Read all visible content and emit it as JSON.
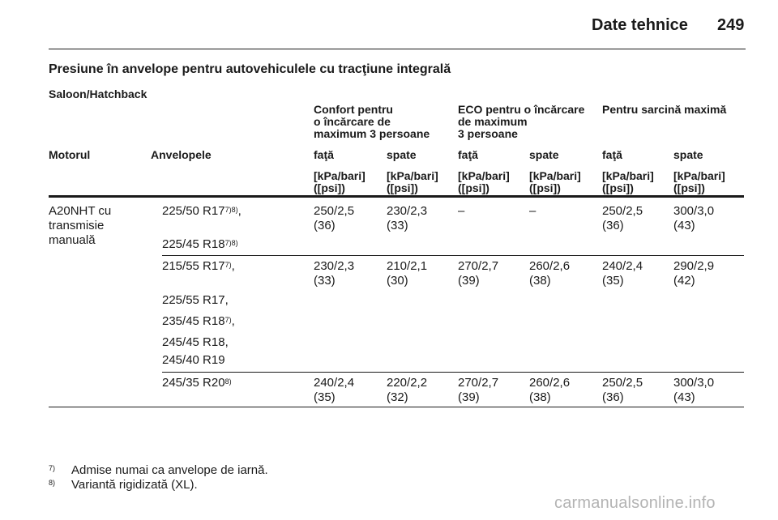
{
  "header": {
    "title": "Date tehnice",
    "page": "249"
  },
  "section_title": "Presiune în anvelope pentru autovehiculele cu tracţiune integrală",
  "subsection": "Saloon/Hatchback",
  "groups": [
    [
      "Confort pentru",
      "o încărcare de",
      "maximum 3 persoane"
    ],
    [
      "ECO pentru o încărcare",
      "de maximum",
      "3 persoane"
    ],
    [
      "Pentru sarcină maximă"
    ]
  ],
  "columns": [
    "Motorul",
    "Anvelopele",
    "faţă",
    "spate",
    "faţă",
    "spate",
    "faţă",
    "spate"
  ],
  "unit": [
    "[kPa/bari]",
    "([psi])"
  ],
  "engine": [
    "A20NHT cu",
    "transmisie",
    "manuală"
  ],
  "tyres": {
    "t1": "225/50 R17",
    "t1_sup": "7)8)",
    "t1_comma": ",",
    "t2": "225/45 R18",
    "t2_sup": "7)8)",
    "t3": "215/55 R17",
    "t3_sup": "7)",
    "t3_comma": ",",
    "t4": "225/55 R17,",
    "t5": "235/45 R18",
    "t5_sup": "7)",
    "t5_comma": ",",
    "t6": "245/45 R18,",
    "t7": "245/40 R19",
    "t8": "245/35 R20",
    "t8_sup": "8)"
  },
  "rows": [
    [
      [
        "250/2,5",
        "(36)"
      ],
      [
        "230/2,3",
        "(33)"
      ],
      [
        "–",
        ""
      ],
      [
        "–",
        ""
      ],
      [
        "250/2,5",
        "(36)"
      ],
      [
        "300/3,0",
        "(43)"
      ]
    ],
    [
      [
        "230/2,3",
        "(33)"
      ],
      [
        "210/2,1",
        "(30)"
      ],
      [
        "270/2,7",
        "(39)"
      ],
      [
        "260/2,6",
        "(38)"
      ],
      [
        "240/2,4",
        "(35)"
      ],
      [
        "290/2,9",
        "(42)"
      ]
    ],
    [
      [
        "240/2,4",
        "(35)"
      ],
      [
        "220/2,2",
        "(32)"
      ],
      [
        "270/2,7",
        "(39)"
      ],
      [
        "260/2,6",
        "(38)"
      ],
      [
        "250/2,5",
        "(36)"
      ],
      [
        "300/3,0",
        "(43)"
      ]
    ]
  ],
  "footnotes": [
    {
      "mark": "7)",
      "text": "Admise numai ca anvelope de iarnă."
    },
    {
      "mark": "8)",
      "text": "Variantă rigidizată (XL)."
    }
  ],
  "watermark": "carmanualsonline.info"
}
